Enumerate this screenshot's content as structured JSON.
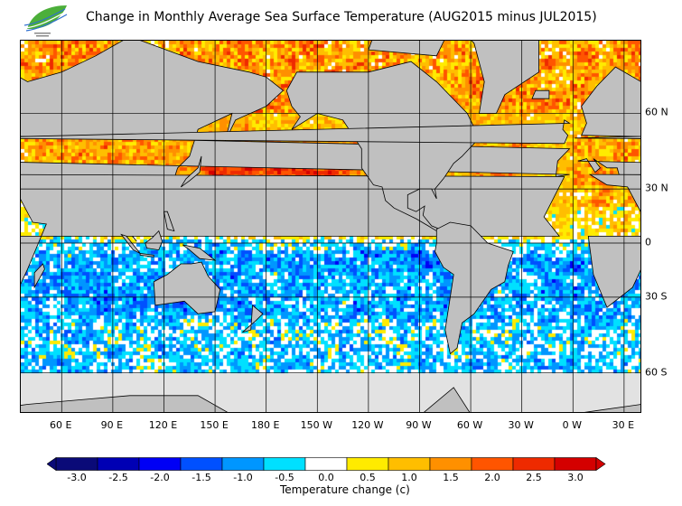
{
  "title": "Change in Monthly Average Sea Surface Temperature (AUG2015 minus JUL2015)",
  "logo_text": "",
  "lon_labels": [
    "60 E",
    "90 E",
    "120 E",
    "150 E",
    "180 E",
    "150 W",
    "120 W",
    "90 W",
    "60 W",
    "30 W",
    "0 W",
    "30 E"
  ],
  "lat_labels": [
    "60 N",
    "30 N",
    "0",
    "30 S",
    "60 S"
  ],
  "colorbar": {
    "labels": [
      "-3.0",
      "-2.5",
      "-2.0",
      "-1.5",
      "-1.0",
      "-0.5",
      "0.0",
      "0.5",
      "1.0",
      "1.5",
      "2.0",
      "2.5",
      "3.0"
    ],
    "title": "Temperature change  (c)",
    "colors": [
      "#0a0a78",
      "#0000b4",
      "#0000f5",
      "#0050ff",
      "#0096ff",
      "#00e0ff",
      "#ffffff",
      "#ffeb00",
      "#ffbe00",
      "#ff9000",
      "#ff5500",
      "#ee2a00",
      "#d40000"
    ]
  },
  "land_color": "#c0c0c0",
  "ice_color": "#e2e2e2"
}
